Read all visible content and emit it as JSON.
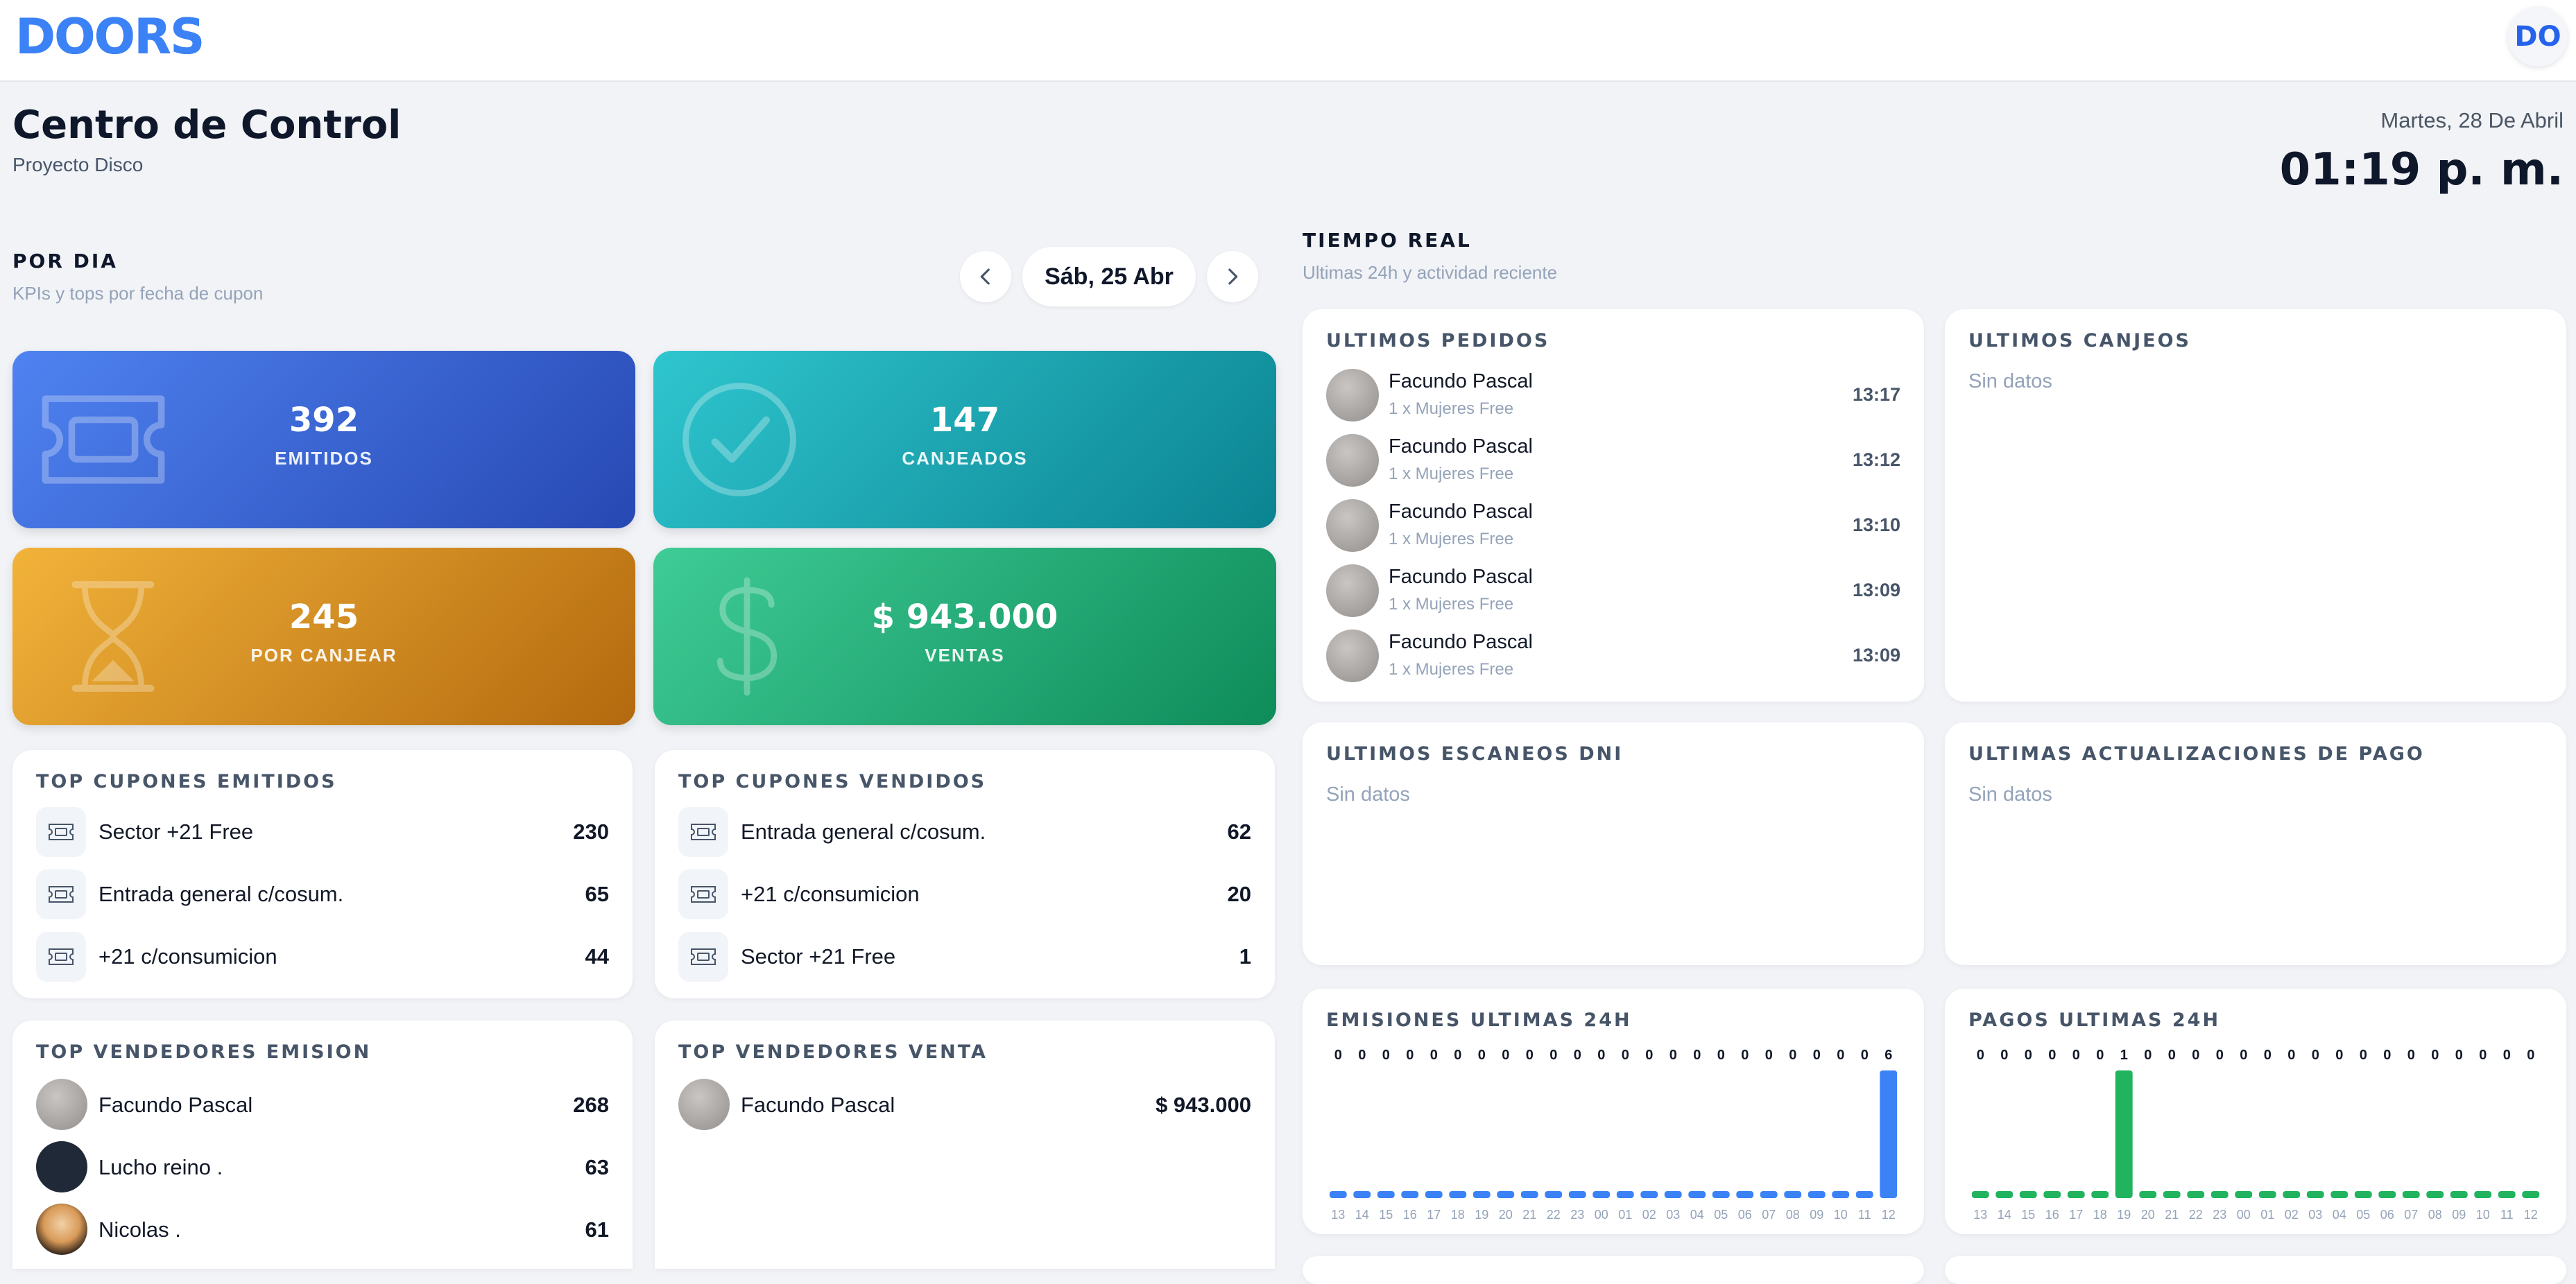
{
  "brand": {
    "logo_text": "DOORS",
    "badge_text": "DO"
  },
  "header": {
    "title": "Centro de Control",
    "subtitle": "Proyecto Disco",
    "date": "Martes, 28 De Abril",
    "time": "01:19 p. m."
  },
  "por_dia": {
    "title": "POR DIA",
    "subtitle": "KPIs y tops por fecha de cupon",
    "selected_date": "Sáb, 25 Abr",
    "prev_icon": "chevron-left-icon",
    "next_icon": "chevron-right-icon"
  },
  "kpis": [
    {
      "value": "392",
      "label": "EMITIDOS",
      "icon": "ticket-icon"
    },
    {
      "value": "147",
      "label": "CANJEADOS",
      "icon": "check-circle-icon"
    },
    {
      "value": "245",
      "label": "POR CANJEAR",
      "icon": "hourglass-icon"
    },
    {
      "value": "$ 943.000",
      "label": "VENTAS",
      "icon": "dollar-icon"
    }
  ],
  "top_cupones_emitidos": {
    "title": "TOP CUPONES EMITIDOS",
    "items": [
      {
        "name": "Sector +21 Free",
        "count": "230"
      },
      {
        "name": "Entrada general c/cosum.",
        "count": "65"
      },
      {
        "name": "+21 c/consumicion",
        "count": "44"
      }
    ]
  },
  "top_cupones_vendidos": {
    "title": "TOP CUPONES VENDIDOS",
    "items": [
      {
        "name": "Entrada general c/cosum.",
        "count": "62"
      },
      {
        "name": "+21 c/consumicion",
        "count": "20"
      },
      {
        "name": "Sector +21 Free",
        "count": "1"
      }
    ]
  },
  "top_vendedores_emision": {
    "title": "TOP VENDEDORES EMISION",
    "items": [
      {
        "name": "Facundo Pascal",
        "count": "268"
      },
      {
        "name": "Lucho reino .",
        "count": "63"
      },
      {
        "name": "Nicolas .",
        "count": "61"
      }
    ]
  },
  "top_vendedores_venta": {
    "title": "TOP VENDEDORES VENTA",
    "items": [
      {
        "name": "Facundo Pascal",
        "count": "$ 943.000"
      }
    ]
  },
  "tiempo_real": {
    "title": "TIEMPO REAL",
    "subtitle": "Ultimas 24h y actividad reciente"
  },
  "ultimos_pedidos": {
    "title": "ULTIMOS PEDIDOS",
    "items": [
      {
        "name": "Facundo Pascal",
        "item": "1 x Mujeres Free",
        "time": "13:17"
      },
      {
        "name": "Facundo Pascal",
        "item": "1 x Mujeres Free",
        "time": "13:12"
      },
      {
        "name": "Facundo Pascal",
        "item": "1 x Mujeres Free",
        "time": "13:10"
      },
      {
        "name": "Facundo Pascal",
        "item": "1 x Mujeres Free",
        "time": "13:09"
      },
      {
        "name": "Facundo Pascal",
        "item": "1 x Mujeres Free",
        "time": "13:09"
      }
    ]
  },
  "ultimos_canjeos": {
    "title": "ULTIMOS CANJEOS",
    "empty": "Sin datos"
  },
  "ultimos_escaneos": {
    "title": "ULTIMOS ESCANEOS DNI",
    "empty": "Sin datos"
  },
  "ultimas_actualizaciones": {
    "title": "ULTIMAS ACTUALIZACIONES DE PAGO",
    "empty": "Sin datos"
  },
  "emisiones_24h": {
    "title": "EMISIONES ULTIMAS 24H"
  },
  "pagos_24h": {
    "title": "PAGOS ULTIMAS 24H"
  },
  "colors": {
    "blue": "#3b82f6",
    "green": "#22b35e"
  },
  "chart_data": [
    {
      "type": "bar",
      "title": "EMISIONES ULTIMAS 24H",
      "categories": [
        "13",
        "14",
        "15",
        "16",
        "17",
        "18",
        "19",
        "20",
        "21",
        "22",
        "23",
        "00",
        "01",
        "02",
        "03",
        "04",
        "05",
        "06",
        "07",
        "08",
        "09",
        "10",
        "11",
        "12"
      ],
      "values": [
        0,
        0,
        0,
        0,
        0,
        0,
        0,
        0,
        0,
        0,
        0,
        0,
        0,
        0,
        0,
        0,
        0,
        0,
        0,
        0,
        0,
        0,
        0,
        6
      ],
      "color": "#3b82f6"
    },
    {
      "type": "bar",
      "title": "PAGOS ULTIMAS 24H",
      "categories": [
        "13",
        "14",
        "15",
        "16",
        "17",
        "18",
        "19",
        "20",
        "21",
        "22",
        "23",
        "00",
        "01",
        "02",
        "03",
        "04",
        "05",
        "06",
        "07",
        "08",
        "09",
        "10",
        "11",
        "12"
      ],
      "values": [
        0,
        0,
        0,
        0,
        0,
        0,
        1,
        0,
        0,
        0,
        0,
        0,
        0,
        0,
        0,
        0,
        0,
        0,
        0,
        0,
        0,
        0,
        0,
        0
      ],
      "color": "#22b35e"
    }
  ]
}
